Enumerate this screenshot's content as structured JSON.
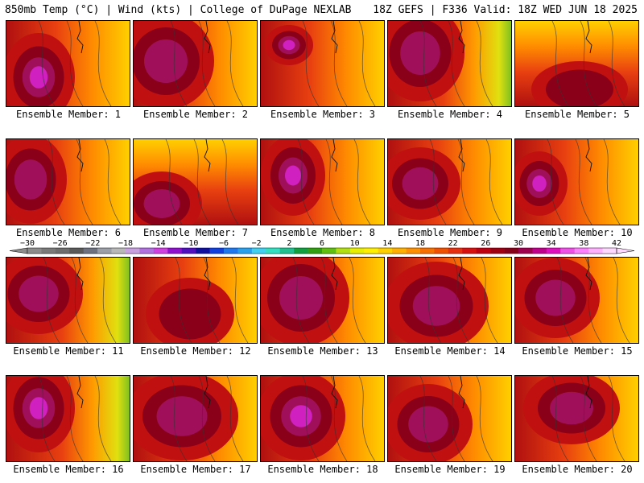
{
  "header": {
    "left": "850mb Temp (°C) | Wind (kts) | College of DuPage NEXLAB",
    "right": "18Z GEFS | F336 Valid: 18Z WED JUN 18 2025"
  },
  "colorbar": {
    "tick_labels": [
      "-30",
      "-26",
      "-22",
      "-18",
      "-14",
      "-10",
      "-6",
      "-2",
      "2",
      "6",
      "10",
      "14",
      "18",
      "22",
      "26",
      "30",
      "34",
      "38",
      "42"
    ],
    "colors": [
      "#8c8c8c",
      "#7a7a7a",
      "#6e6e6e",
      "#5a5a5a",
      "#6e7280",
      "#9a9fa8",
      "#b8b8b8",
      "#c8a0e0",
      "#b070e0",
      "#d040e0",
      "#9010d0",
      "#5010c0",
      "#1010a0",
      "#1040e0",
      "#1e78f0",
      "#28a0f0",
      "#40d0f0",
      "#30e0c0",
      "#20c090",
      "#10a040",
      "#30a010",
      "#60c010",
      "#b0e010",
      "#e8f000",
      "#fff000",
      "#ffd000",
      "#ffb000",
      "#ff9000",
      "#f87000",
      "#f05000",
      "#e83010",
      "#d81010",
      "#c00010",
      "#a00010",
      "#880018",
      "#a00050",
      "#c0008c",
      "#e010c0",
      "#f050e8",
      "#ff80ff",
      "#ffb0ff",
      "#ffd8ff"
    ]
  },
  "panels": [
    {
      "member": 1,
      "label": "Ensemble Member: 1"
    },
    {
      "member": 2,
      "label": "Ensemble Member: 2"
    },
    {
      "member": 3,
      "label": "Ensemble Member: 3"
    },
    {
      "member": 4,
      "label": "Ensemble Member: 4"
    },
    {
      "member": 5,
      "label": "Ensemble Member: 5"
    },
    {
      "member": 6,
      "label": "Ensemble Member: 6"
    },
    {
      "member": 7,
      "label": "Ensemble Member: 7"
    },
    {
      "member": 8,
      "label": "Ensemble Member: 8"
    },
    {
      "member": 9,
      "label": "Ensemble Member: 9"
    },
    {
      "member": 10,
      "label": "Ensemble Member: 10"
    },
    {
      "member": 11,
      "label": "Ensemble Member: 11"
    },
    {
      "member": 12,
      "label": "Ensemble Member: 12"
    },
    {
      "member": 13,
      "label": "Ensemble Member: 13"
    },
    {
      "member": 14,
      "label": "Ensemble Member: 14"
    },
    {
      "member": 15,
      "label": "Ensemble Member: 15"
    },
    {
      "member": 16,
      "label": "Ensemble Member: 16"
    },
    {
      "member": 17,
      "label": "Ensemble Member: 17"
    },
    {
      "member": 18,
      "label": "Ensemble Member: 18"
    },
    {
      "member": 19,
      "label": "Ensemble Member: 19"
    },
    {
      "member": 20,
      "label": "Ensemble Member: 20"
    }
  ]
}
